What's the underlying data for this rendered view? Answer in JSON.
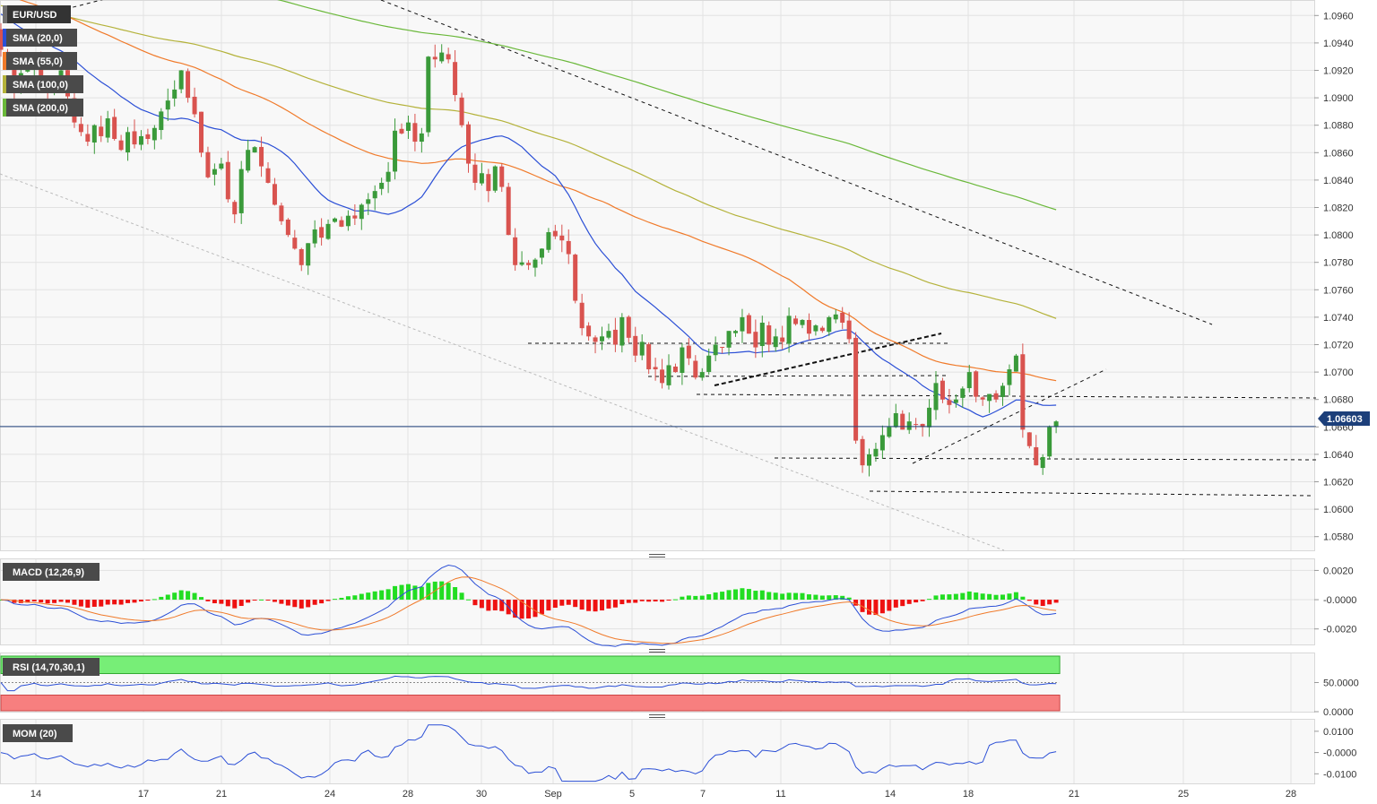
{
  "window": {
    "symbol": "EUR/USD",
    "price_label": "1.06603"
  },
  "indicators": {
    "sma": [
      "SMA (20,0)",
      "SMA (55,0)",
      "SMA (100,0)",
      "SMA (200,0)"
    ],
    "macd": "MACD (12,26,9)",
    "rsi": "RSI (14,70,30,1)",
    "mom": "MOM (20)"
  },
  "colors": {
    "bull": "#3a9a3a",
    "bear": "#d9534f",
    "sma20": "#2b4fd6",
    "sma55": "#f07a2a",
    "sma100": "#b4b23a",
    "sma200": "#6ab83a",
    "price_line": "#1c3f7a",
    "macd_hist_up": "#22dd22",
    "macd_hist_down": "#ee1111",
    "rsi_over": "#77ee77",
    "rsi_under": "#f77f7f"
  },
  "chart_data": [
    {
      "type": "candlestick",
      "title": "EUR/USD",
      "ylim": [
        1.057,
        1.097
      ],
      "y_ticks": [
        "1.0960",
        "1.0940",
        "1.0920",
        "1.0900",
        "1.0880",
        "1.0860",
        "1.0840",
        "1.0820",
        "1.0800",
        "1.0780",
        "1.0760",
        "1.0740",
        "1.0720",
        "1.0700",
        "1.0680",
        "1.0660",
        "1.0640",
        "1.0620",
        "1.0600",
        "1.0580"
      ],
      "x_ticks": [
        "14",
        "17",
        "21",
        "24",
        "28",
        "30",
        "Sep",
        "5",
        "7",
        "11",
        "14",
        "18",
        "21",
        "25",
        "28"
      ],
      "last_price": 1.06603,
      "close": [
        1.0935,
        1.0928,
        1.0905,
        1.0918,
        1.0922,
        1.093,
        1.091,
        1.0904,
        1.0912,
        1.092,
        1.0901,
        1.0882,
        1.0875,
        1.0868,
        1.088,
        1.0872,
        1.0885,
        1.087,
        1.0862,
        1.0875,
        1.0866,
        1.0872,
        1.087,
        1.0878,
        1.089,
        1.0898,
        1.0906,
        1.092,
        1.09,
        1.0888,
        1.086,
        1.0842,
        1.0848,
        1.0852,
        1.0826,
        1.0815,
        1.0848,
        1.0862,
        1.0864,
        1.085,
        1.0838,
        1.0822,
        1.081,
        1.08,
        1.079,
        1.0778,
        1.0794,
        1.0804,
        1.0798,
        1.0808,
        1.0812,
        1.0806,
        1.0814,
        1.0812,
        1.0822,
        1.0826,
        1.0832,
        1.0838,
        1.0846,
        1.0876,
        1.0874,
        1.0882,
        1.0868,
        1.0874,
        1.093,
        1.0928,
        1.0933,
        1.0928,
        1.0902,
        1.088,
        1.0852,
        1.0838,
        1.0845,
        1.0832,
        1.085,
        1.0835,
        1.08,
        1.0778,
        1.078,
        1.0778,
        1.0782,
        1.079,
        1.0802,
        1.0799,
        1.0796,
        1.0786,
        1.0752,
        1.0732,
        1.0726,
        1.0722,
        1.0726,
        1.073,
        1.072,
        1.074,
        1.0725,
        1.0712,
        1.0722,
        1.0702,
        1.0702,
        1.0692,
        1.0705,
        1.07,
        1.0718,
        1.071,
        1.0696,
        1.07,
        1.0712,
        1.072,
        1.0718,
        1.073,
        1.073,
        1.074,
        1.0728,
        1.0718,
        1.0736,
        1.072,
        1.0726,
        1.0722,
        1.0741,
        1.0735,
        1.0738,
        1.0728,
        1.0734,
        1.073,
        1.074,
        1.0742,
        1.0736,
        1.0724,
        1.065,
        1.0632,
        1.064,
        1.0644,
        1.0654,
        1.066,
        1.067,
        1.0658,
        1.0664,
        1.0662,
        1.066,
        1.0674,
        1.0692,
        1.068,
        1.0676,
        1.068,
        1.0688,
        1.07,
        1.0682,
        1.068,
        1.0684,
        1.068,
        1.069,
        1.0702,
        1.0712,
        1.0658,
        1.0646,
        1.0632,
        1.0638,
        1.066,
        1.0664
      ],
      "series": [
        {
          "name": "SMA (20,0)",
          "type": "line"
        },
        {
          "name": "SMA (55,0)",
          "type": "line"
        },
        {
          "name": "SMA (100,0)",
          "type": "line"
        },
        {
          "name": "SMA (200,0)",
          "type": "line"
        }
      ]
    },
    {
      "type": "bar",
      "title": "MACD (12,26,9)",
      "ylim": [
        -0.003,
        0.0027
      ],
      "y_ticks": [
        "0.0020",
        "-0.0000",
        "-0.0020"
      ]
    },
    {
      "type": "line",
      "title": "RSI (14,70,30,1)",
      "ylim": [
        0,
        100
      ],
      "y_ticks": [
        "50.0000",
        "0.0000"
      ]
    },
    {
      "type": "line",
      "title": "MOM (20)",
      "ylim": [
        -0.0145,
        0.015
      ],
      "y_ticks": [
        "0.0100",
        "-0.0000",
        "-0.0100"
      ]
    }
  ]
}
